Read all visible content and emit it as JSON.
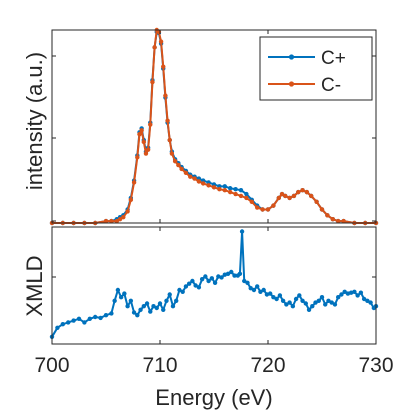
{
  "colors": {
    "c_plus": "#0072BD",
    "c_minus": "#D95319",
    "axis": "#262626"
  },
  "chart_data": [
    {
      "type": "line",
      "panel": "top",
      "ylabel": "intensity (a.u.)",
      "xlim": [
        700,
        730
      ],
      "ylim": [
        0,
        1.0
      ],
      "grid": false,
      "legend_position": "top-right",
      "series": [
        {
          "name": "C+",
          "color": "#0072BD",
          "x": [
            700,
            701,
            702,
            703,
            704,
            705,
            705.5,
            706,
            706.3,
            706.6,
            707,
            707.3,
            707.6,
            707.9,
            708.1,
            708.3,
            708.5,
            708.7,
            708.9,
            709.1,
            709.3,
            709.5,
            709.7,
            709.9,
            710.1,
            710.3,
            710.5,
            710.7,
            710.9,
            711.1,
            711.4,
            711.7,
            712,
            712.4,
            712.8,
            713.2,
            713.6,
            714,
            714.5,
            715,
            715.5,
            716,
            716.5,
            717,
            717.5,
            718,
            718.5,
            719,
            719.5,
            720,
            720.5,
            721,
            721.3,
            721.6,
            722,
            722.4,
            722.8,
            723.2,
            723.6,
            724,
            724.5,
            725,
            725.5,
            726,
            726.5,
            727,
            728,
            729,
            730
          ],
          "y": [
            0.0,
            0.0,
            0.0,
            0.0,
            0.0,
            0.01,
            0.01,
            0.02,
            0.03,
            0.04,
            0.07,
            0.13,
            0.22,
            0.35,
            0.47,
            0.49,
            0.43,
            0.37,
            0.39,
            0.52,
            0.74,
            0.91,
            0.99,
            0.985,
            0.93,
            0.8,
            0.65,
            0.52,
            0.43,
            0.37,
            0.33,
            0.31,
            0.29,
            0.27,
            0.25,
            0.24,
            0.23,
            0.22,
            0.21,
            0.2,
            0.19,
            0.19,
            0.18,
            0.175,
            0.17,
            0.15,
            0.12,
            0.09,
            0.07,
            0.07,
            0.09,
            0.13,
            0.15,
            0.14,
            0.13,
            0.14,
            0.16,
            0.17,
            0.16,
            0.14,
            0.11,
            0.07,
            0.04,
            0.02,
            0.01,
            0.01,
            0.0,
            0.0,
            0.0
          ]
        },
        {
          "name": "C-",
          "color": "#D95319",
          "x": [
            700,
            701,
            702,
            703,
            704,
            705,
            705.5,
            706,
            706.3,
            706.6,
            707,
            707.3,
            707.6,
            707.9,
            708.1,
            708.3,
            708.5,
            708.7,
            708.9,
            709.1,
            709.3,
            709.5,
            709.7,
            709.9,
            710.1,
            710.3,
            710.5,
            710.7,
            710.9,
            711.1,
            711.4,
            711.7,
            712,
            712.4,
            712.8,
            713.2,
            713.6,
            714,
            714.5,
            715,
            715.5,
            716,
            716.5,
            717,
            717.5,
            718,
            718.5,
            719,
            719.5,
            720,
            720.5,
            721,
            721.3,
            721.6,
            722,
            722.4,
            722.8,
            723.2,
            723.6,
            724,
            724.5,
            725,
            725.5,
            726,
            726.5,
            727,
            728,
            729,
            730
          ],
          "y": [
            0.0,
            0.0,
            0.0,
            0.0,
            0.0,
            0.01,
            0.01,
            0.01,
            0.02,
            0.03,
            0.06,
            0.12,
            0.21,
            0.34,
            0.46,
            0.48,
            0.42,
            0.36,
            0.38,
            0.51,
            0.73,
            0.91,
            1.0,
            0.99,
            0.94,
            0.81,
            0.66,
            0.53,
            0.43,
            0.36,
            0.32,
            0.3,
            0.28,
            0.26,
            0.24,
            0.23,
            0.215,
            0.205,
            0.195,
            0.185,
            0.175,
            0.17,
            0.16,
            0.15,
            0.14,
            0.13,
            0.11,
            0.08,
            0.07,
            0.07,
            0.09,
            0.13,
            0.15,
            0.14,
            0.13,
            0.14,
            0.16,
            0.17,
            0.16,
            0.14,
            0.11,
            0.07,
            0.04,
            0.02,
            0.01,
            0.01,
            0.0,
            0.0,
            0.0
          ]
        }
      ]
    },
    {
      "type": "line",
      "panel": "bottom",
      "xlabel": "Energy (eV)",
      "ylabel": "XMLD",
      "xticks": [
        700,
        710,
        720,
        730
      ],
      "xlim": [
        700,
        730
      ],
      "ylim": [
        -0.3,
        1.0
      ],
      "grid": false,
      "series": [
        {
          "name": "",
          "color": "#0072BD",
          "x": [
            700,
            700.5,
            701,
            701.5,
            702,
            702.5,
            703,
            703.5,
            704,
            704.5,
            705,
            705.5,
            705.8,
            706.1,
            706.4,
            706.7,
            707,
            707.3,
            707.6,
            707.9,
            708.2,
            708.5,
            708.8,
            709.1,
            709.4,
            709.7,
            710,
            710.3,
            710.6,
            710.9,
            711.2,
            711.5,
            711.8,
            712.1,
            712.4,
            712.7,
            713,
            713.3,
            713.6,
            713.9,
            714.2,
            714.5,
            714.8,
            715.1,
            715.4,
            715.7,
            716,
            716.3,
            716.6,
            716.9,
            717.2,
            717.4,
            717.6,
            717.8,
            718.1,
            718.4,
            718.7,
            719,
            719.3,
            719.6,
            719.9,
            720.2,
            720.5,
            720.8,
            721.1,
            721.4,
            721.7,
            722,
            722.3,
            722.6,
            722.9,
            723.2,
            723.5,
            723.8,
            724.1,
            724.4,
            724.7,
            725,
            725.3,
            725.6,
            725.9,
            726.2,
            726.5,
            726.8,
            727.1,
            727.4,
            727.7,
            728,
            728.3,
            728.6,
            728.9,
            729.2,
            729.5,
            729.8,
            730
          ],
          "y": [
            -0.22,
            -0.12,
            -0.08,
            -0.06,
            -0.04,
            -0.02,
            -0.06,
            -0.02,
            0.0,
            -0.01,
            0.02,
            0.04,
            0.18,
            0.3,
            0.22,
            0.26,
            0.12,
            0.18,
            0.05,
            0.02,
            0.08,
            0.12,
            0.15,
            0.06,
            0.12,
            0.1,
            0.15,
            0.08,
            0.18,
            0.25,
            0.12,
            0.18,
            0.3,
            0.28,
            0.34,
            0.37,
            0.4,
            0.35,
            0.33,
            0.42,
            0.45,
            0.4,
            0.43,
            0.38,
            0.45,
            0.44,
            0.47,
            0.48,
            0.5,
            0.46,
            0.46,
            0.48,
            0.95,
            0.4,
            0.38,
            0.32,
            0.3,
            0.34,
            0.28,
            0.3,
            0.25,
            0.26,
            0.22,
            0.2,
            0.24,
            0.18,
            0.14,
            0.16,
            0.12,
            0.2,
            0.24,
            0.18,
            0.15,
            0.08,
            0.12,
            0.16,
            0.18,
            0.22,
            0.14,
            0.18,
            0.16,
            0.14,
            0.22,
            0.25,
            0.28,
            0.26,
            0.27,
            0.28,
            0.24,
            0.27,
            0.2,
            0.18,
            0.16,
            0.1,
            0.12
          ]
        }
      ]
    }
  ]
}
